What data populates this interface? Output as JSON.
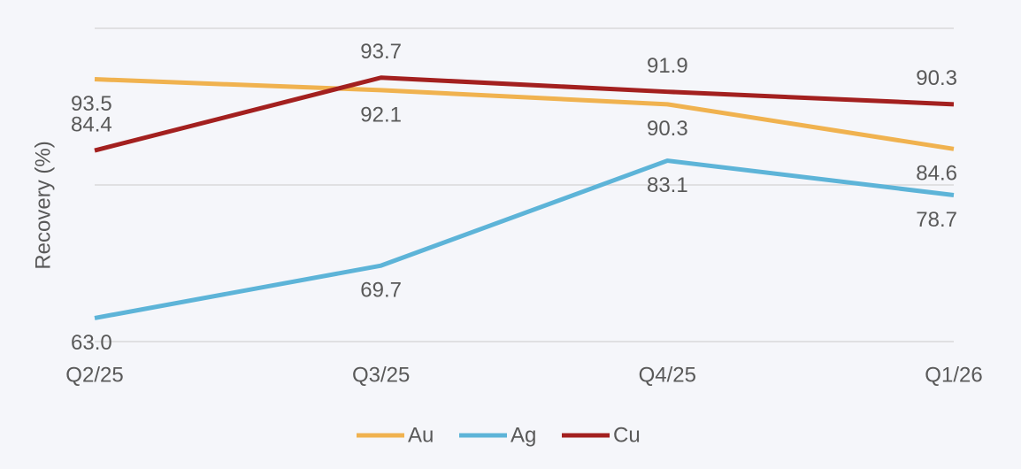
{
  "chart_data": {
    "type": "line",
    "y_label": "Recovery (%)",
    "categories": [
      "Q2/25",
      "Q3/25",
      "Q4/25",
      "Q1/26"
    ],
    "series": [
      {
        "name": "Au",
        "color": "#f0b24f",
        "values": [
          93.5,
          92.1,
          90.3,
          84.6
        ]
      },
      {
        "name": "Ag",
        "color": "#5db4d8",
        "values": [
          63.0,
          69.7,
          83.1,
          78.7
        ],
        "value_labels": [
          "63.0",
          "69.7",
          "83.1",
          "78.7"
        ]
      },
      {
        "name": "Cu",
        "color": "#a3201f",
        "values": [
          84.4,
          93.7,
          91.9,
          90.3
        ]
      }
    ],
    "ylim": [
      60,
      100
    ],
    "yticks": [
      60,
      80,
      100
    ],
    "grid": true,
    "legend": "bottom"
  }
}
